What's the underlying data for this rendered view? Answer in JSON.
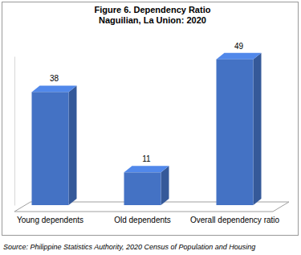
{
  "chart_data": {
    "type": "bar",
    "title": "Figure 6. Dependency Ratio",
    "subtitle": "Naguilian, La Union: 2020",
    "categories": [
      "Young dependents",
      "Old dependents",
      "Overall dependency ratio"
    ],
    "values": [
      38,
      11,
      49
    ],
    "color": "#4472c4",
    "ylim": [
      0,
      50
    ],
    "data_labels": true,
    "tick_labels": "x",
    "source": "Source: Philippine Statistics Authority, 2020 Census of Population and Housing"
  }
}
